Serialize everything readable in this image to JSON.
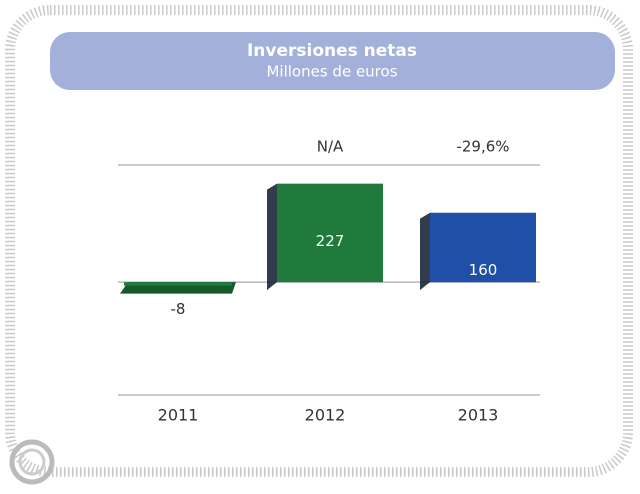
{
  "chart_data": {
    "type": "bar",
    "title": "Inversiones netas",
    "subtitle": "Millones de euros",
    "categories": [
      "2011",
      "2012",
      "2013"
    ],
    "values": [
      -8,
      227,
      160
    ],
    "colors": [
      "#1f7a3c",
      "#1f7a3c",
      "#1f4fa6"
    ],
    "annotations": [
      null,
      "N/A",
      "-29,6%"
    ],
    "ylim": [
      -260,
      270
    ],
    "grid": true
  }
}
